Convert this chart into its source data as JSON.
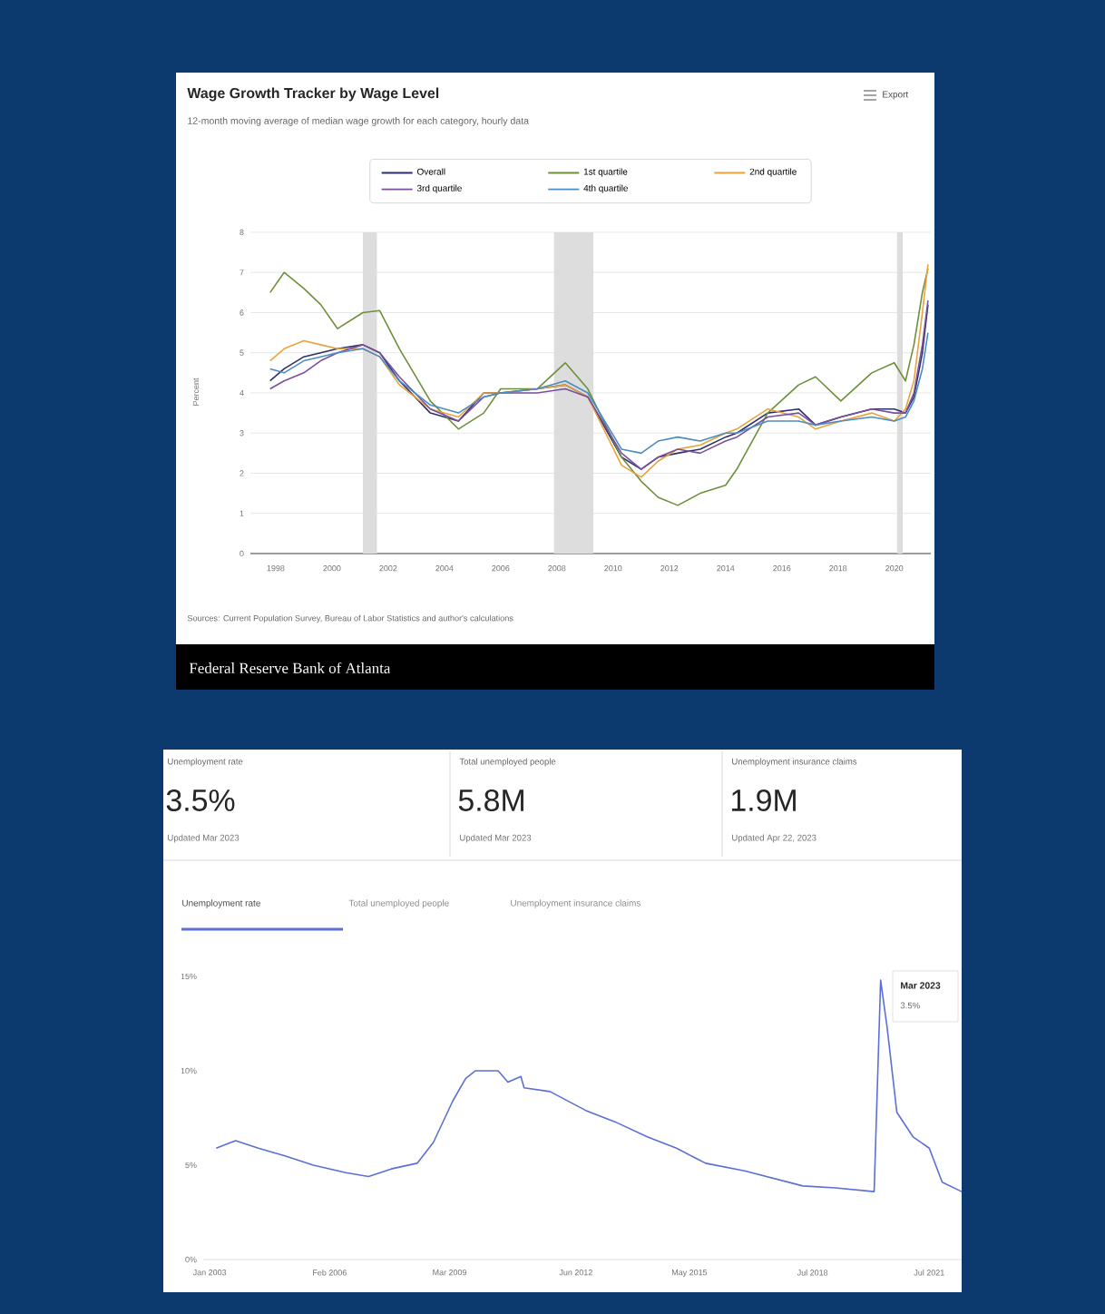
{
  "chart_data": [
    {
      "type": "line",
      "title": "Wage Growth Tracker by Wage Level",
      "subtitle": "12-month moving average of median wage growth for each category, hourly data",
      "ylabel": "Percent",
      "annotations": [
        "Export",
        "Sources: Current Population Survey, Bureau of Labor Statistics and author's calculations",
        "Federal Reserve Bank of Atlanta"
      ],
      "x": [
        1997.8,
        1998.3,
        1999,
        1999.6,
        2000.2,
        2001.1,
        2001.7,
        2002.4,
        2003.5,
        2004.5,
        2005.4,
        2006.0,
        2007.3,
        2008.3,
        2009.1,
        2010.3,
        2011.0,
        2011.6,
        2012.3,
        2013.1,
        2014.0,
        2014.4,
        2015.5,
        2016.6,
        2017.2,
        2018.1,
        2019.2,
        2020.0,
        2020.4,
        2020.7,
        2021.0,
        2021.2
      ],
      "series": [
        {
          "name": "Overall",
          "color": "#2c2f6b",
          "values": [
            4.3,
            4.6,
            4.9,
            5.0,
            5.1,
            5.2,
            5.0,
            4.3,
            3.5,
            3.3,
            4.0,
            4.0,
            4.1,
            4.2,
            3.9,
            2.4,
            2.1,
            2.4,
            2.5,
            2.6,
            2.9,
            3.0,
            3.5,
            3.6,
            3.2,
            3.4,
            3.6,
            3.6,
            3.5,
            3.9,
            5.0,
            6.2
          ]
        },
        {
          "name": "1st quartile",
          "color": "#6e8f3a",
          "values": [
            6.5,
            7.0,
            6.6,
            6.2,
            5.6,
            6.0,
            6.05,
            5.1,
            3.8,
            3.1,
            3.5,
            4.1,
            4.1,
            4.75,
            4.1,
            2.4,
            1.8,
            1.4,
            1.2,
            1.5,
            1.7,
            2.1,
            3.5,
            4.2,
            4.4,
            3.8,
            4.5,
            4.75,
            4.3,
            5.2,
            6.5,
            7.1
          ]
        },
        {
          "name": "2nd quartile",
          "color": "#e8a33a",
          "values": [
            4.8,
            5.1,
            5.3,
            5.2,
            5.1,
            5.1,
            4.9,
            4.2,
            3.6,
            3.4,
            4.0,
            4.0,
            4.1,
            4.2,
            3.9,
            2.2,
            1.9,
            2.3,
            2.6,
            2.7,
            3.0,
            3.1,
            3.6,
            3.4,
            3.1,
            3.3,
            3.5,
            3.3,
            3.6,
            4.3,
            6.0,
            7.2
          ]
        },
        {
          "name": "3rd quartile",
          "color": "#7a4f9e",
          "values": [
            4.1,
            4.3,
            4.5,
            4.8,
            5.0,
            5.2,
            5.0,
            4.4,
            3.6,
            3.3,
            3.9,
            4.0,
            4.0,
            4.1,
            3.9,
            2.5,
            2.1,
            2.4,
            2.6,
            2.5,
            2.8,
            2.9,
            3.4,
            3.5,
            3.2,
            3.4,
            3.6,
            3.5,
            3.5,
            4.0,
            5.2,
            6.3
          ]
        },
        {
          "name": "4th quartile",
          "color": "#4a8cc4",
          "values": [
            4.6,
            4.5,
            4.8,
            4.9,
            5.0,
            5.1,
            4.9,
            4.3,
            3.7,
            3.5,
            3.9,
            4.0,
            4.1,
            4.3,
            4.0,
            2.6,
            2.5,
            2.8,
            2.9,
            2.8,
            3.0,
            3.0,
            3.3,
            3.3,
            3.2,
            3.3,
            3.4,
            3.3,
            3.4,
            3.8,
            4.6,
            5.5
          ]
        }
      ],
      "xlim": [
        1997.1,
        2021.3
      ],
      "ylim": [
        0,
        8
      ],
      "xticks": [
        1998,
        2000,
        2002,
        2004,
        2006,
        2008,
        2010,
        2012,
        2014,
        2016,
        2018,
        2020
      ],
      "yticks": [
        0,
        1,
        2,
        3,
        4,
        5,
        6,
        7,
        8
      ],
      "grid": "y",
      "legend": "top",
      "bands": [
        {
          "axis": "x",
          "from": 2001.1,
          "to": 2001.6,
          "color": "#dddddd"
        },
        {
          "axis": "x",
          "from": 2007.9,
          "to": 2009.3,
          "color": "#dddddd"
        },
        {
          "axis": "x",
          "from": 2020.1,
          "to": 2020.3,
          "color": "#dddddd"
        }
      ]
    },
    {
      "type": "other",
      "annotations": [
        "Unemployment rate",
        "3.5%",
        "Updated Mar 2023",
        "Total unemployed people",
        "5.8M",
        "Updated Mar 2023",
        "Unemployment insurance claims",
        "1.9M",
        "Updated Apr 22, 2023",
        "Unemployment rate",
        "Total unemployed people",
        "Unemployment insurance claims"
      ]
    },
    {
      "type": "line",
      "color": "#5b6fd6",
      "x": [
        "2003-03",
        "2003-09",
        "2004-04",
        "2004-12",
        "2005-09",
        "2006-07",
        "2007-02",
        "2007-09",
        "2008-05",
        "2008-10",
        "2009-04",
        "2009-08",
        "2009-11",
        "2010-06",
        "2010-09",
        "2011-01",
        "2011-02",
        "2011-10",
        "2012-09",
        "2013-06",
        "2014-04",
        "2015-01",
        "2015-10",
        "2016-10",
        "2017-07",
        "2018-04",
        "2019-02",
        "2020-02",
        "2020-04",
        "2020-06",
        "2020-09",
        "2021-02",
        "2021-07",
        "2021-11",
        "2022-05"
      ],
      "values": [
        5.9,
        6.3,
        5.9,
        5.5,
        5.0,
        4.6,
        4.4,
        4.8,
        5.1,
        6.2,
        8.4,
        9.6,
        10.0,
        10.0,
        9.4,
        9.7,
        9.1,
        8.9,
        7.9,
        7.3,
        6.5,
        5.9,
        5.1,
        4.7,
        4.3,
        3.9,
        3.8,
        3.6,
        14.8,
        12.3,
        7.8,
        6.5,
        5.9,
        4.1,
        3.6
      ],
      "xlim": [
        "2002-11",
        "2022-05"
      ],
      "ylim": [
        0,
        15
      ],
      "xticks": [
        {
          "value": "2003-01",
          "label": "Jan 2003"
        },
        {
          "value": "2006-02",
          "label": "Feb 2006"
        },
        {
          "value": "2009-03",
          "label": "Mar 2009"
        },
        {
          "value": "2012-06",
          "label": "Jun 2012"
        },
        {
          "value": "2015-05",
          "label": "May 2015"
        },
        {
          "value": "2018-07",
          "label": "Jul 2018"
        },
        {
          "value": "2021-07",
          "label": "Jul 2021"
        }
      ],
      "yticks": [
        {
          "value": 0,
          "label": "0%"
        },
        {
          "value": 5,
          "label": "5%"
        },
        {
          "value": 10,
          "label": "10%"
        },
        {
          "value": 15,
          "label": "15%"
        }
      ],
      "annotations": [
        "Mar 2023",
        "3.5%"
      ]
    }
  ]
}
